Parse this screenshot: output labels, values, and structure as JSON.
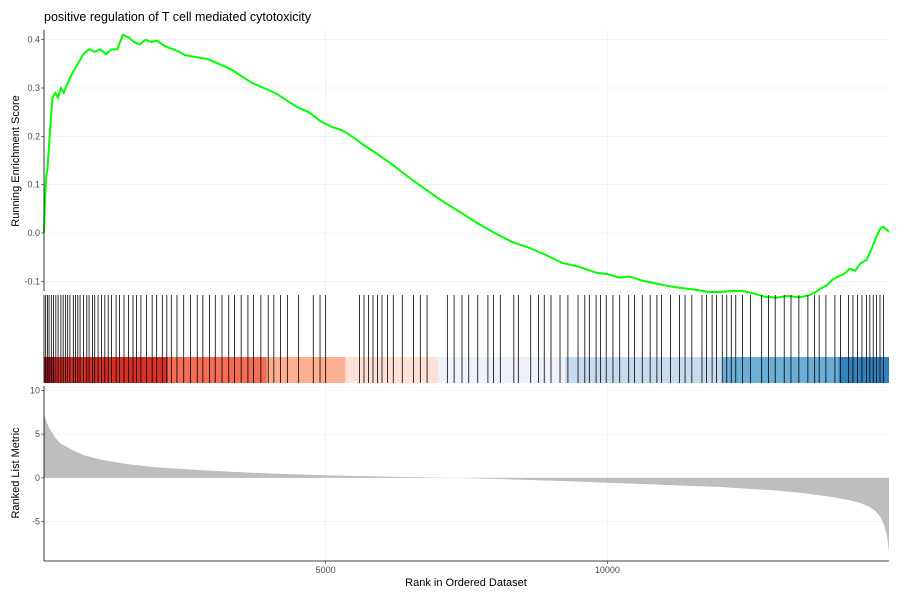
{
  "chart_data": {
    "type": "line",
    "title": "positive regulation of T cell mediated cytotoxicity",
    "xlabel": "Rank in Ordered Dataset",
    "xlim": [
      0,
      15000
    ],
    "x_ticks": [
      5000,
      10000
    ],
    "x_tick_labels": [
      "5000",
      "10000"
    ],
    "grid": true,
    "panels": [
      {
        "id": "running-score",
        "ylabel": "Running Enrichment Score",
        "ylim": [
          -0.12,
          0.42
        ],
        "y_ticks": [
          -0.1,
          0.0,
          0.1,
          0.2,
          0.3,
          0.4
        ],
        "y_tick_labels": [
          "-0.1",
          "0.0",
          "0.1",
          "0.2",
          "0.3",
          "0.4"
        ],
        "series": [
          {
            "color": "#00ff00",
            "x": [
              0,
              15,
              40,
              60,
              100,
              150,
              200,
              250,
              300,
              350,
              420,
              500,
              600,
              700,
              800,
              900,
              1000,
              1100,
              1200,
              1300,
              1400,
              1500,
              1600,
              1700,
              1800,
              1900,
              2000,
              2100,
              2200,
              2300,
              2400,
              2500,
              2700,
              2900,
              3100,
              3300,
              3500,
              3700,
              3900,
              4100,
              4300,
              4500,
              4700,
              4900,
              5100,
              5300,
              5500,
              5700,
              5900,
              6200,
              6500,
              6800,
              7100,
              7400,
              7700,
              8000,
              8300,
              8600,
              8900,
              9200,
              9500,
              9800,
              10000,
              10200,
              10400,
              10600,
              10800,
              11000,
              11200,
              11400,
              11600,
              11800,
              12000,
              12200,
              12400,
              12600,
              12800,
              13000,
              13200,
              13400,
              13500,
              13600,
              13700,
              13800,
              13900,
              14000,
              14100,
              14200,
              14300,
              14400,
              14500,
              14600,
              14700,
              14750,
              14800,
              14850,
              14900,
              15000
            ],
            "y": [
              0.0,
              0.06,
              0.12,
              0.13,
              0.2,
              0.28,
              0.29,
              0.28,
              0.3,
              0.29,
              0.31,
              0.33,
              0.35,
              0.37,
              0.38,
              0.375,
              0.38,
              0.37,
              0.38,
              0.38,
              0.41,
              0.405,
              0.395,
              0.39,
              0.4,
              0.395,
              0.398,
              0.39,
              0.384,
              0.38,
              0.375,
              0.368,
              0.364,
              0.36,
              0.35,
              0.34,
              0.325,
              0.31,
              0.3,
              0.29,
              0.275,
              0.26,
              0.25,
              0.232,
              0.22,
              0.212,
              0.197,
              0.18,
              0.165,
              0.14,
              0.113,
              0.088,
              0.064,
              0.042,
              0.02,
              0.0,
              -0.018,
              -0.03,
              -0.045,
              -0.062,
              -0.07,
              -0.082,
              -0.085,
              -0.092,
              -0.09,
              -0.098,
              -0.103,
              -0.108,
              -0.112,
              -0.115,
              -0.118,
              -0.122,
              -0.122,
              -0.12,
              -0.12,
              -0.125,
              -0.132,
              -0.134,
              -0.13,
              -0.133,
              -0.131,
              -0.128,
              -0.122,
              -0.114,
              -0.108,
              -0.096,
              -0.09,
              -0.085,
              -0.074,
              -0.078,
              -0.062,
              -0.056,
              -0.03,
              -0.015,
              -0.002,
              0.01,
              0.013,
              0.002
            ]
          }
        ]
      },
      {
        "id": "gene-hits",
        "hit_ranks": [
          30,
          60,
          90,
          130,
          170,
          210,
          250,
          300,
          340,
          380,
          420,
          460,
          520,
          560,
          600,
          640,
          700,
          760,
          800,
          860,
          900,
          960,
          1020,
          1080,
          1140,
          1200,
          1280,
          1340,
          1420,
          1500,
          1580,
          1640,
          1720,
          1820,
          1920,
          2000,
          2100,
          2180,
          2260,
          2360,
          2480,
          2600,
          2720,
          2820,
          2940,
          3040,
          3160,
          3280,
          3380,
          3500,
          3620,
          3720,
          3850,
          3980,
          4080,
          4200,
          4320,
          4520,
          4780,
          4900,
          5000,
          5600,
          5680,
          5760,
          5840,
          5920,
          6000,
          6100,
          6200,
          6360,
          6560,
          6680,
          6800,
          7160,
          7280,
          7420,
          7540,
          7700,
          7880,
          7980,
          8100,
          8340,
          8420,
          8640,
          8780,
          8880,
          9000,
          9160,
          9300,
          9480,
          9600,
          9680,
          9800,
          9880,
          9980,
          10100,
          10220,
          10380,
          10480,
          10620,
          10760,
          10880,
          10960,
          11120,
          11280,
          11380,
          11500,
          11680,
          11760,
          11860,
          11940,
          12040,
          12120,
          12200,
          12280,
          12400,
          12540,
          12740,
          12860,
          12980,
          13140,
          13260,
          13400,
          13560,
          13680,
          13760,
          13880,
          14040,
          14140,
          14280,
          14360,
          14440,
          14520,
          14600,
          14660,
          14720,
          14780,
          14840,
          14900
        ],
        "color_bands": [
          {
            "from": 0,
            "to": 200,
            "color": "#b2182b"
          },
          {
            "from": 200,
            "to": 2200,
            "color": "#d73027"
          },
          {
            "from": 2200,
            "to": 3950,
            "color": "#f46d55"
          },
          {
            "from": 3950,
            "to": 5350,
            "color": "#fcae91"
          },
          {
            "from": 5350,
            "to": 7000,
            "color": "#fde0d6"
          },
          {
            "from": 7000,
            "to": 9250,
            "color": "#eef0fa"
          },
          {
            "from": 9250,
            "to": 12050,
            "color": "#c6dbef"
          },
          {
            "from": 12050,
            "to": 14100,
            "color": "#6baed6"
          },
          {
            "from": 14100,
            "to": 15000,
            "color": "#3182bd"
          }
        ]
      },
      {
        "id": "ranked-metric",
        "ylabel": "Ranked List Metric",
        "ylim": [
          -9.5,
          10.5
        ],
        "y_ticks": [
          10,
          5,
          0,
          -5
        ],
        "y_tick_labels": [
          "10",
          "5",
          "0",
          "-5"
        ],
        "series": [
          {
            "type": "area",
            "color": "#bebebe",
            "x": [
              0,
              15,
              50,
              100,
              200,
              300,
              500,
              700,
              1000,
              1500,
              2000,
              3000,
              4000,
              5000,
              6000,
              7000,
              7300,
              8000,
              9000,
              10000,
              11000,
              12000,
              12500,
              13000,
              13500,
              14000,
              14300,
              14500,
              14650,
              14750,
              14850,
              14920,
              14970,
              15000
            ],
            "y": [
              7.5,
              7.0,
              6.3,
              5.6,
              4.6,
              3.9,
              3.2,
              2.6,
              2.1,
              1.55,
              1.2,
              0.8,
              0.5,
              0.3,
              0.15,
              0.03,
              0.0,
              -0.12,
              -0.32,
              -0.55,
              -0.8,
              -1.05,
              -1.25,
              -1.45,
              -1.75,
              -2.2,
              -2.55,
              -2.9,
              -3.3,
              -3.7,
              -4.5,
              -5.5,
              -6.8,
              -8.5
            ]
          }
        ]
      }
    ]
  }
}
